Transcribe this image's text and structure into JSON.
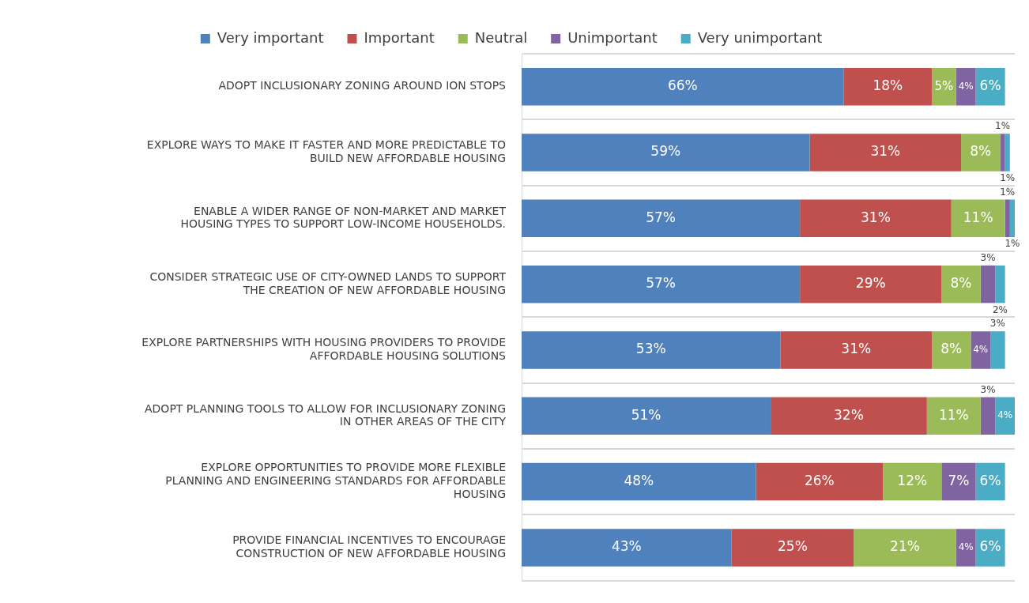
{
  "chart_data": {
    "type": "bar",
    "orientation": "horizontal",
    "stacked": true,
    "grid": "y",
    "legend": "top",
    "categories": [
      "ADOPT INCLUSIONARY ZONING AROUND ION STOPS",
      "EXPLORE WAYS TO MAKE IT FASTER AND MORE PREDICTABLE TO BUILD NEW AFFORDABLE HOUSING",
      "ENABLE A WIDER RANGE OF NON-MARKET AND MARKET HOUSING TYPES TO SUPPORT LOW-INCOME HOUSEHOLDS.",
      "CONSIDER STRATEGIC USE OF CITY-OWNED LANDS TO SUPPORT THE CREATION OF NEW AFFORDABLE HOUSING",
      "EXPLORE PARTNERSHIPS WITH HOUSING PROVIDERS TO PROVIDE AFFORDABLE HOUSING SOLUTIONS",
      "ADOPT PLANNING TOOLS TO ALLOW FOR INCLUSIONARY ZONING IN OTHER AREAS OF THE CITY",
      "EXPLORE OPPORTUNITIES TO PROVIDE MORE FLEXIBLE PLANNING AND ENGINEERING STANDARDS FOR AFFORDABLE HOUSING",
      "PROVIDE FINANCIAL INCENTIVES TO ENCOURAGE CONSTRUCTION OF NEW AFFORDABLE HOUSING"
    ],
    "series": [
      {
        "name": "Very important",
        "color": "#4f81bd",
        "values": [
          66,
          59,
          57,
          57,
          53,
          51,
          48,
          43
        ],
        "value_labels": [
          "66%",
          "59%",
          "57%",
          "57%",
          "53%",
          "51%",
          "48%",
          "43%"
        ]
      },
      {
        "name": "Important",
        "color": "#c0504d",
        "values": [
          18,
          31,
          31,
          29,
          31,
          32,
          26,
          25
        ],
        "value_labels": [
          "18%",
          "31%",
          "31%",
          "29%",
          "31%",
          "32%",
          "26%",
          "25%"
        ]
      },
      {
        "name": "Neutral",
        "color": "#9bbb59",
        "values": [
          5,
          8,
          11,
          8,
          8,
          11,
          12,
          21
        ],
        "value_labels": [
          "5%",
          "8%",
          "11%",
          "8%",
          "8%",
          "11%",
          "12%",
          "21%"
        ]
      },
      {
        "name": "Unimportant",
        "color": "#8064a2",
        "values": [
          4,
          1,
          1,
          3,
          4,
          3,
          7,
          4
        ],
        "value_labels": [
          "4%",
          "1%",
          "1%",
          "3%",
          "4%",
          "3%",
          "7%",
          "4%"
        ]
      },
      {
        "name": "Very unimportant",
        "color": "#4bacc6",
        "values": [
          6,
          1,
          1,
          2,
          3,
          4,
          6,
          6
        ],
        "value_labels": [
          "6%",
          "1%",
          "1%",
          "2%",
          "3%",
          "4%",
          "6%",
          "6%"
        ]
      }
    ]
  }
}
